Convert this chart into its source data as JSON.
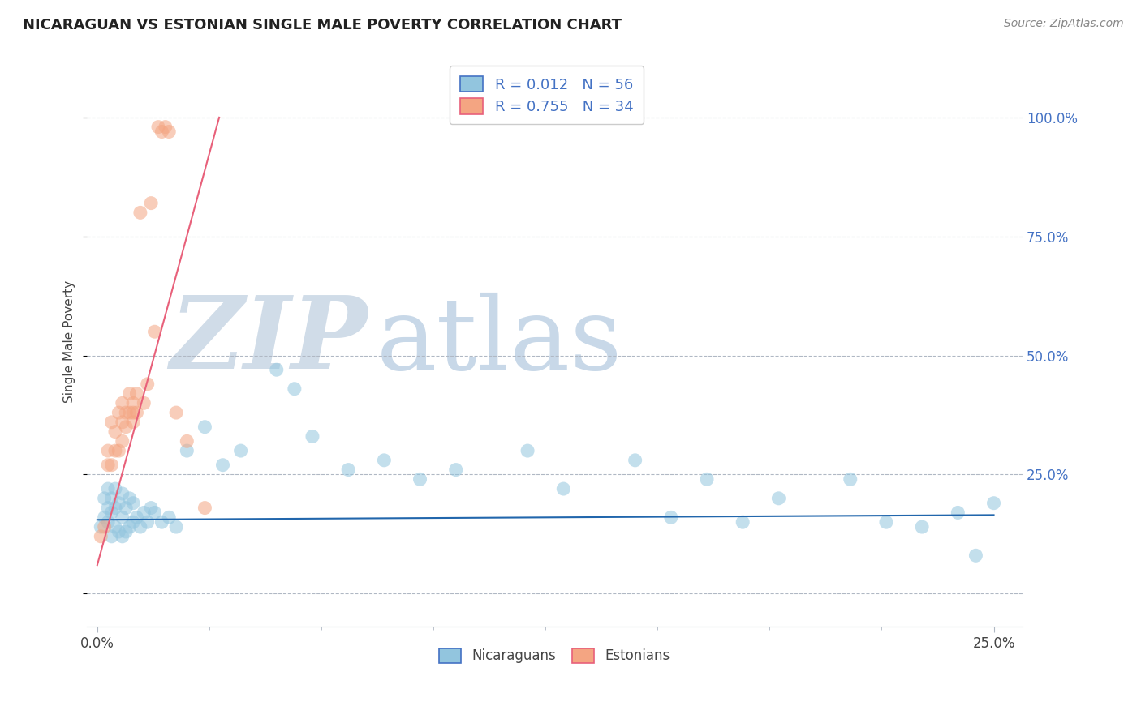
{
  "title": "NICARAGUAN VS ESTONIAN SINGLE MALE POVERTY CORRELATION CHART",
  "source": "Source: ZipAtlas.com",
  "ylabel": "Single Male Poverty",
  "blue_color": "#92c5de",
  "pink_color": "#f4a582",
  "blue_line_color": "#2166ac",
  "pink_line_color": "#e8607a",
  "watermark_zip_color": "#d0dce8",
  "watermark_atlas_color": "#c8d8e8",
  "legend_label1": "R = 0.012   N = 56",
  "legend_label2": "R = 0.755   N = 34",
  "blue_x": [
    0.001,
    0.002,
    0.002,
    0.003,
    0.003,
    0.003,
    0.004,
    0.004,
    0.004,
    0.005,
    0.005,
    0.005,
    0.006,
    0.006,
    0.007,
    0.007,
    0.007,
    0.008,
    0.008,
    0.009,
    0.009,
    0.01,
    0.01,
    0.011,
    0.012,
    0.013,
    0.014,
    0.015,
    0.016,
    0.018,
    0.02,
    0.022,
    0.025,
    0.03,
    0.035,
    0.04,
    0.05,
    0.055,
    0.06,
    0.07,
    0.08,
    0.09,
    0.1,
    0.12,
    0.13,
    0.15,
    0.16,
    0.17,
    0.18,
    0.19,
    0.21,
    0.22,
    0.23,
    0.24,
    0.245,
    0.25
  ],
  "blue_y": [
    0.14,
    0.16,
    0.2,
    0.15,
    0.18,
    0.22,
    0.12,
    0.17,
    0.2,
    0.14,
    0.18,
    0.22,
    0.13,
    0.19,
    0.12,
    0.16,
    0.21,
    0.13,
    0.18,
    0.14,
    0.2,
    0.15,
    0.19,
    0.16,
    0.14,
    0.17,
    0.15,
    0.18,
    0.17,
    0.15,
    0.16,
    0.14,
    0.3,
    0.35,
    0.27,
    0.3,
    0.47,
    0.43,
    0.33,
    0.26,
    0.28,
    0.24,
    0.26,
    0.3,
    0.22,
    0.28,
    0.16,
    0.24,
    0.15,
    0.2,
    0.24,
    0.15,
    0.14,
    0.17,
    0.08,
    0.19
  ],
  "pink_x": [
    0.001,
    0.002,
    0.003,
    0.003,
    0.004,
    0.004,
    0.005,
    0.005,
    0.006,
    0.006,
    0.007,
    0.007,
    0.007,
    0.008,
    0.008,
    0.009,
    0.009,
    0.01,
    0.01,
    0.01,
    0.011,
    0.011,
    0.012,
    0.013,
    0.014,
    0.015,
    0.016,
    0.017,
    0.018,
    0.019,
    0.02,
    0.022,
    0.025,
    0.03
  ],
  "pink_y": [
    0.12,
    0.14,
    0.27,
    0.3,
    0.27,
    0.36,
    0.3,
    0.34,
    0.3,
    0.38,
    0.32,
    0.36,
    0.4,
    0.35,
    0.38,
    0.38,
    0.42,
    0.4,
    0.36,
    0.38,
    0.38,
    0.42,
    0.8,
    0.4,
    0.44,
    0.82,
    0.55,
    0.98,
    0.97,
    0.98,
    0.97,
    0.38,
    0.32,
    0.18
  ],
  "blue_line_x0": 0.0,
  "blue_line_x1": 0.25,
  "blue_line_y0": 0.155,
  "blue_line_y1": 0.165,
  "pink_line_x0": 0.0,
  "pink_line_x1": 0.034,
  "pink_line_y0": 0.06,
  "pink_line_y1": 1.0,
  "xlim_min": -0.003,
  "xlim_max": 0.258,
  "ylim_min": -0.07,
  "ylim_max": 1.13,
  "ytick_positions": [
    0.0,
    0.25,
    0.5,
    0.75,
    1.0
  ],
  "ytick_labels": [
    "",
    "25.0%",
    "50.0%",
    "75.0%",
    "100.0%"
  ]
}
